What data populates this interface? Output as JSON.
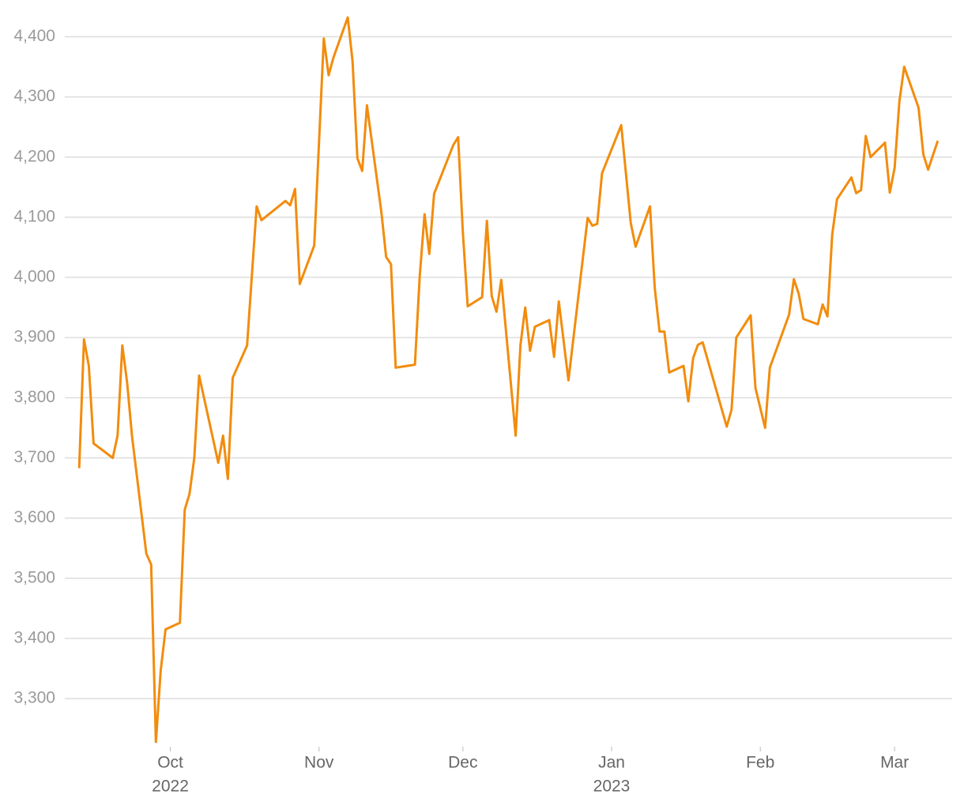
{
  "chart_data": {
    "type": "line",
    "x": [
      11,
      12,
      13,
      14,
      18,
      19,
      20,
      21,
      22,
      25,
      26,
      27,
      28,
      29,
      32,
      33,
      34,
      35,
      36,
      40,
      41,
      42,
      43,
      46,
      47,
      48,
      49,
      54,
      55,
      56,
      57,
      60,
      62,
      63,
      64,
      67,
      68,
      69,
      70,
      71,
      74,
      75,
      76,
      77,
      81,
      82,
      83,
      84,
      85,
      89,
      90,
      91,
      92,
      95,
      96,
      97,
      98,
      99,
      102,
      103,
      104,
      105,
      106,
      109,
      110,
      111,
      113,
      117,
      118,
      119,
      120,
      124,
      126,
      127,
      130,
      131,
      132,
      133,
      134,
      137,
      138,
      139,
      140,
      141,
      146,
      147,
      148,
      151,
      152,
      154,
      155,
      159,
      160,
      161,
      162,
      165,
      166,
      167,
      168,
      169,
      172,
      173,
      174,
      175,
      176,
      179,
      180,
      181,
      182,
      183,
      186,
      187,
      188,
      190
    ],
    "values": [
      3683,
      3897,
      3853,
      3724,
      3700,
      3737,
      3887,
      3825,
      3737,
      3541,
      3523,
      3228,
      3347,
      3415,
      3426,
      3614,
      3640,
      3700,
      3837,
      3692,
      3737,
      3665,
      3833,
      3887,
      4002,
      4118,
      4095,
      4127,
      4120,
      4147,
      3989,
      4053,
      4397,
      4336,
      4365,
      4432,
      4359,
      4198,
      4177,
      4286,
      4109,
      4034,
      4022,
      3850,
      3855,
      4002,
      4105,
      4039,
      4139,
      4220,
      4233,
      4074,
      3952,
      3967,
      4094,
      3969,
      3943,
      3996,
      3737,
      3888,
      3950,
      3878,
      3918,
      3929,
      3868,
      3960,
      3829,
      4099,
      4086,
      4089,
      4173,
      4253,
      4090,
      4051,
      4118,
      3983,
      3910,
      3910,
      3842,
      3853,
      3794,
      3866,
      3888,
      3892,
      3752,
      3780,
      3900,
      3937,
      3816,
      3750,
      3850,
      3938,
      3997,
      3973,
      3931,
      3922,
      3955,
      3935,
      4071,
      4130,
      4166,
      4140,
      4145,
      4235,
      4200,
      4224,
      4141,
      4182,
      4292,
      4350,
      4282,
      4204,
      4179,
      4227
    ],
    "color": "#f28c0d",
    "xlim": [
      8,
      193
    ],
    "xticks": [
      {
        "value": 30,
        "label": "Oct",
        "year": "2022"
      },
      {
        "value": 61,
        "label": "Nov"
      },
      {
        "value": 91,
        "label": "Dec"
      },
      {
        "value": 122,
        "label": "Jan",
        "year": "2023"
      },
      {
        "value": 153,
        "label": "Feb"
      },
      {
        "value": 181,
        "label": "Mar"
      }
    ],
    "ylim": [
      3220,
      4440
    ],
    "yticks": [
      {
        "value": 3300,
        "label": "3,300"
      },
      {
        "value": 3400,
        "label": "3,400"
      },
      {
        "value": 3500,
        "label": "3,500"
      },
      {
        "value": 3600,
        "label": "3,600"
      },
      {
        "value": 3700,
        "label": "3,700"
      },
      {
        "value": 3800,
        "label": "3,800"
      },
      {
        "value": 3900,
        "label": "3,900"
      },
      {
        "value": 4000,
        "label": "4,000"
      },
      {
        "value": 4100,
        "label": "4,100"
      },
      {
        "value": 4200,
        "label": "4,200"
      },
      {
        "value": 4300,
        "label": "4,300"
      },
      {
        "value": 4400,
        "label": "4,400"
      }
    ],
    "grid": true
  }
}
